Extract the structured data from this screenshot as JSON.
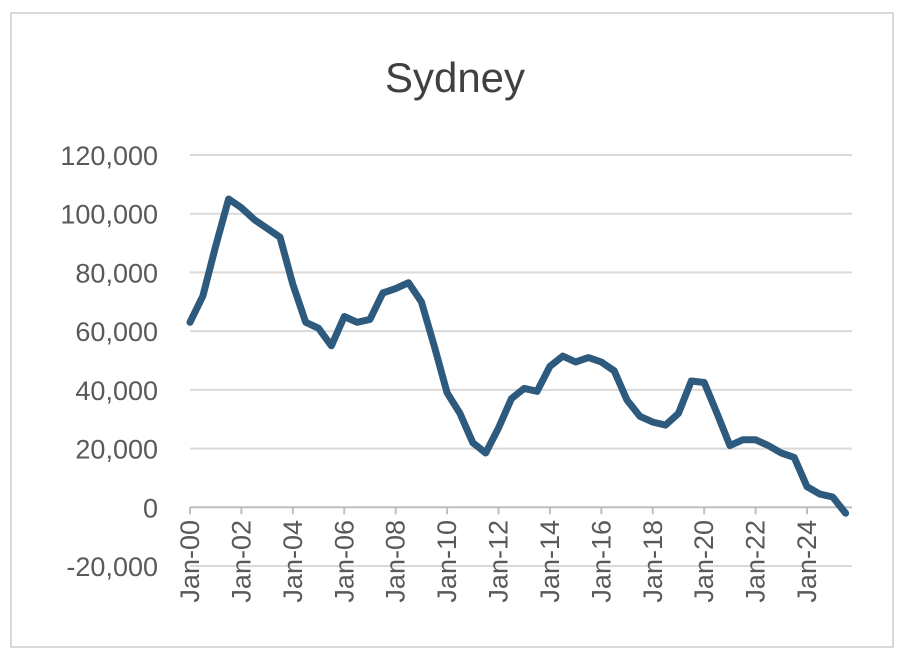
{
  "chart_data": {
    "type": "line",
    "title": "Sydney",
    "xlabel": "",
    "ylabel": "",
    "ylim": [
      -20000,
      120000
    ],
    "yticks": [
      -20000,
      0,
      20000,
      40000,
      60000,
      80000,
      100000,
      120000
    ],
    "ytick_labels": [
      "-20,000",
      "0",
      "20,000",
      "40,000",
      "60,000",
      "80,000",
      "100,000",
      "120,000"
    ],
    "xticks": [
      "Jan-00",
      "Jan-02",
      "Jan-04",
      "Jan-06",
      "Jan-08",
      "Jan-10",
      "Jan-12",
      "Jan-14",
      "Jan-16",
      "Jan-18",
      "Jan-20",
      "Jan-22",
      "Jan-24"
    ],
    "xtick_values": [
      2000,
      2002,
      2004,
      2006,
      2008,
      2010,
      2012,
      2014,
      2016,
      2018,
      2020,
      2022,
      2024
    ],
    "xlim": [
      2000,
      2025.75
    ],
    "grid": true,
    "legend": "none",
    "color": "#2e5a7d",
    "series": [
      {
        "x": [
          2000,
          2000.5,
          2001,
          2001.5,
          2002,
          2002.5,
          2003,
          2003.5,
          2004,
          2004.5,
          2005,
          2005.5,
          2006,
          2006.5,
          2007,
          2007.5,
          2008,
          2008.5,
          2009,
          2009.5,
          2010,
          2010.5,
          2011,
          2011.5,
          2012,
          2012.5,
          2013,
          2013.5,
          2014,
          2014.5,
          2015,
          2015.5,
          2016,
          2016.5,
          2017,
          2017.5,
          2018,
          2018.5,
          2019,
          2019.5,
          2020,
          2020.5,
          2021,
          2021.5,
          2022,
          2022.5,
          2023,
          2023.5,
          2024,
          2024.5,
          2025,
          2025.5
        ],
        "values": [
          63000,
          72000,
          89000,
          105000,
          102000,
          98000,
          95000,
          92000,
          76000,
          63000,
          61000,
          55000,
          65000,
          63000,
          64000,
          73000,
          74500,
          76500,
          70000,
          55000,
          39000,
          32000,
          22000,
          18500,
          27000,
          37000,
          40500,
          39500,
          48000,
          51500,
          49500,
          51000,
          49500,
          46500,
          36500,
          31000,
          29000,
          28000,
          32000,
          43000,
          42500,
          32000,
          21000,
          23000,
          23000,
          21000,
          18500,
          17000,
          7000,
          4500,
          3500,
          -2000
        ]
      }
    ]
  }
}
